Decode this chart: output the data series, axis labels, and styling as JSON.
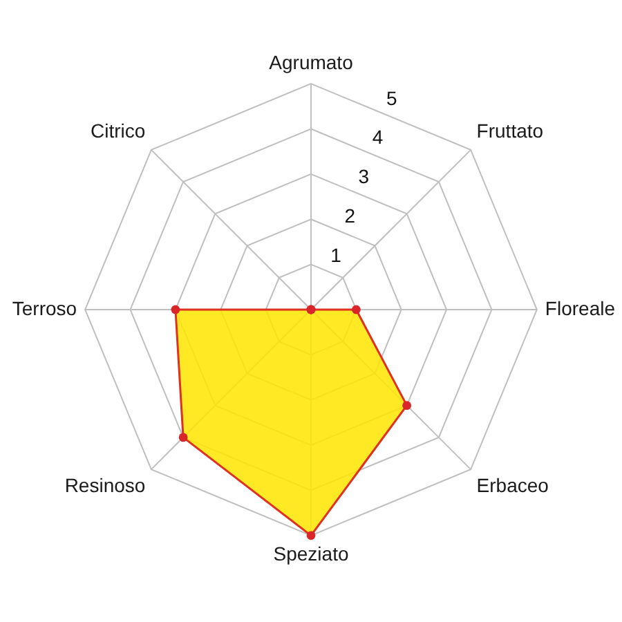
{
  "chart_data": {
    "type": "radar",
    "categories": [
      "Agrumato",
      "Fruttato",
      "Floreale",
      "Erbaceo",
      "Speziato",
      "Resinoso",
      "Terroso",
      "Citrico"
    ],
    "series": [
      {
        "color": "#ffe500",
        "values": [
          0,
          0,
          1,
          3,
          5,
          4,
          3,
          0
        ]
      }
    ],
    "ylim": [
      0,
      5
    ],
    "yticks": [
      1,
      2,
      3,
      4,
      5
    ],
    "grid": true,
    "marker": "circle"
  }
}
